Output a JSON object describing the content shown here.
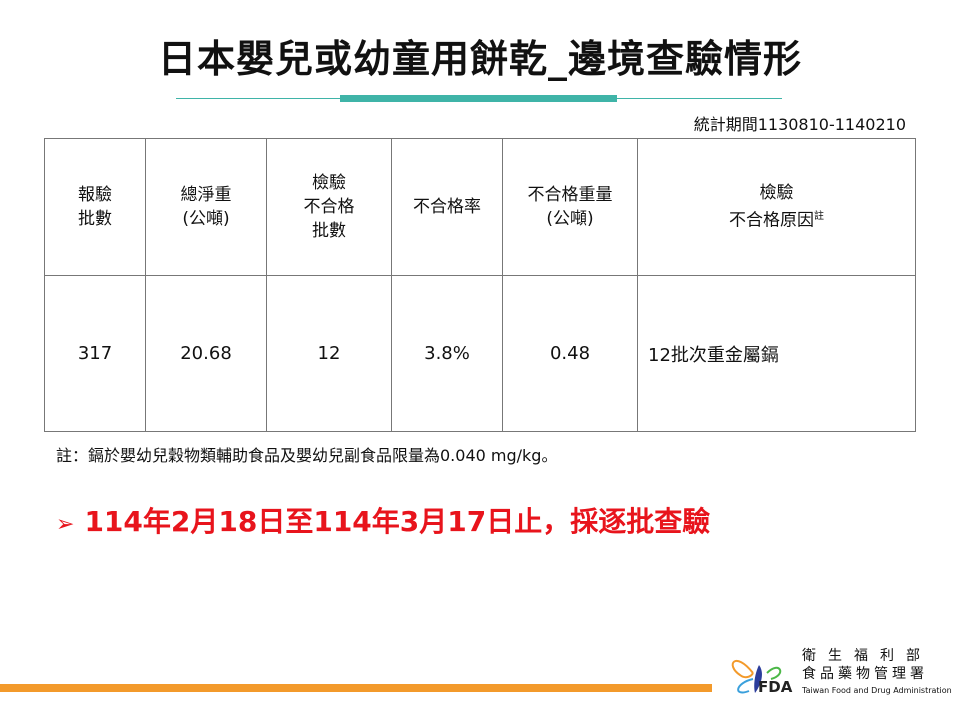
{
  "title": "日本嬰兒或幼童用餅乾_邊境查驗情形",
  "period": "統計期間1130810-1140210",
  "table": {
    "headers": [
      [
        "報驗",
        "批數"
      ],
      [
        "總淨重",
        "(公噸)"
      ],
      [
        "檢驗",
        "不合格",
        "批數"
      ],
      [
        "不合格率"
      ],
      [
        "不合格重量",
        "(公噸)"
      ],
      [
        "檢驗",
        "不合格原因",
        "註"
      ]
    ],
    "row": [
      "317",
      "20.68",
      "12",
      "3.8%",
      "0.48",
      "12批次重金屬鎘"
    ]
  },
  "note": "註：鎘於嬰幼兒穀物類輔助食品及嬰幼兒副食品限量為0.040 mg/kg。",
  "headline": "114年2月18日至114年3月17日止，採逐批查驗",
  "headline_color": "#e8141c",
  "accent_color": "#3fb4a8",
  "logo": {
    "abbr": "FDA",
    "org_line1": "衛生福利部",
    "org_line2": "食品藥物管理署",
    "org_en": "Taiwan Food and Drug Administration"
  }
}
